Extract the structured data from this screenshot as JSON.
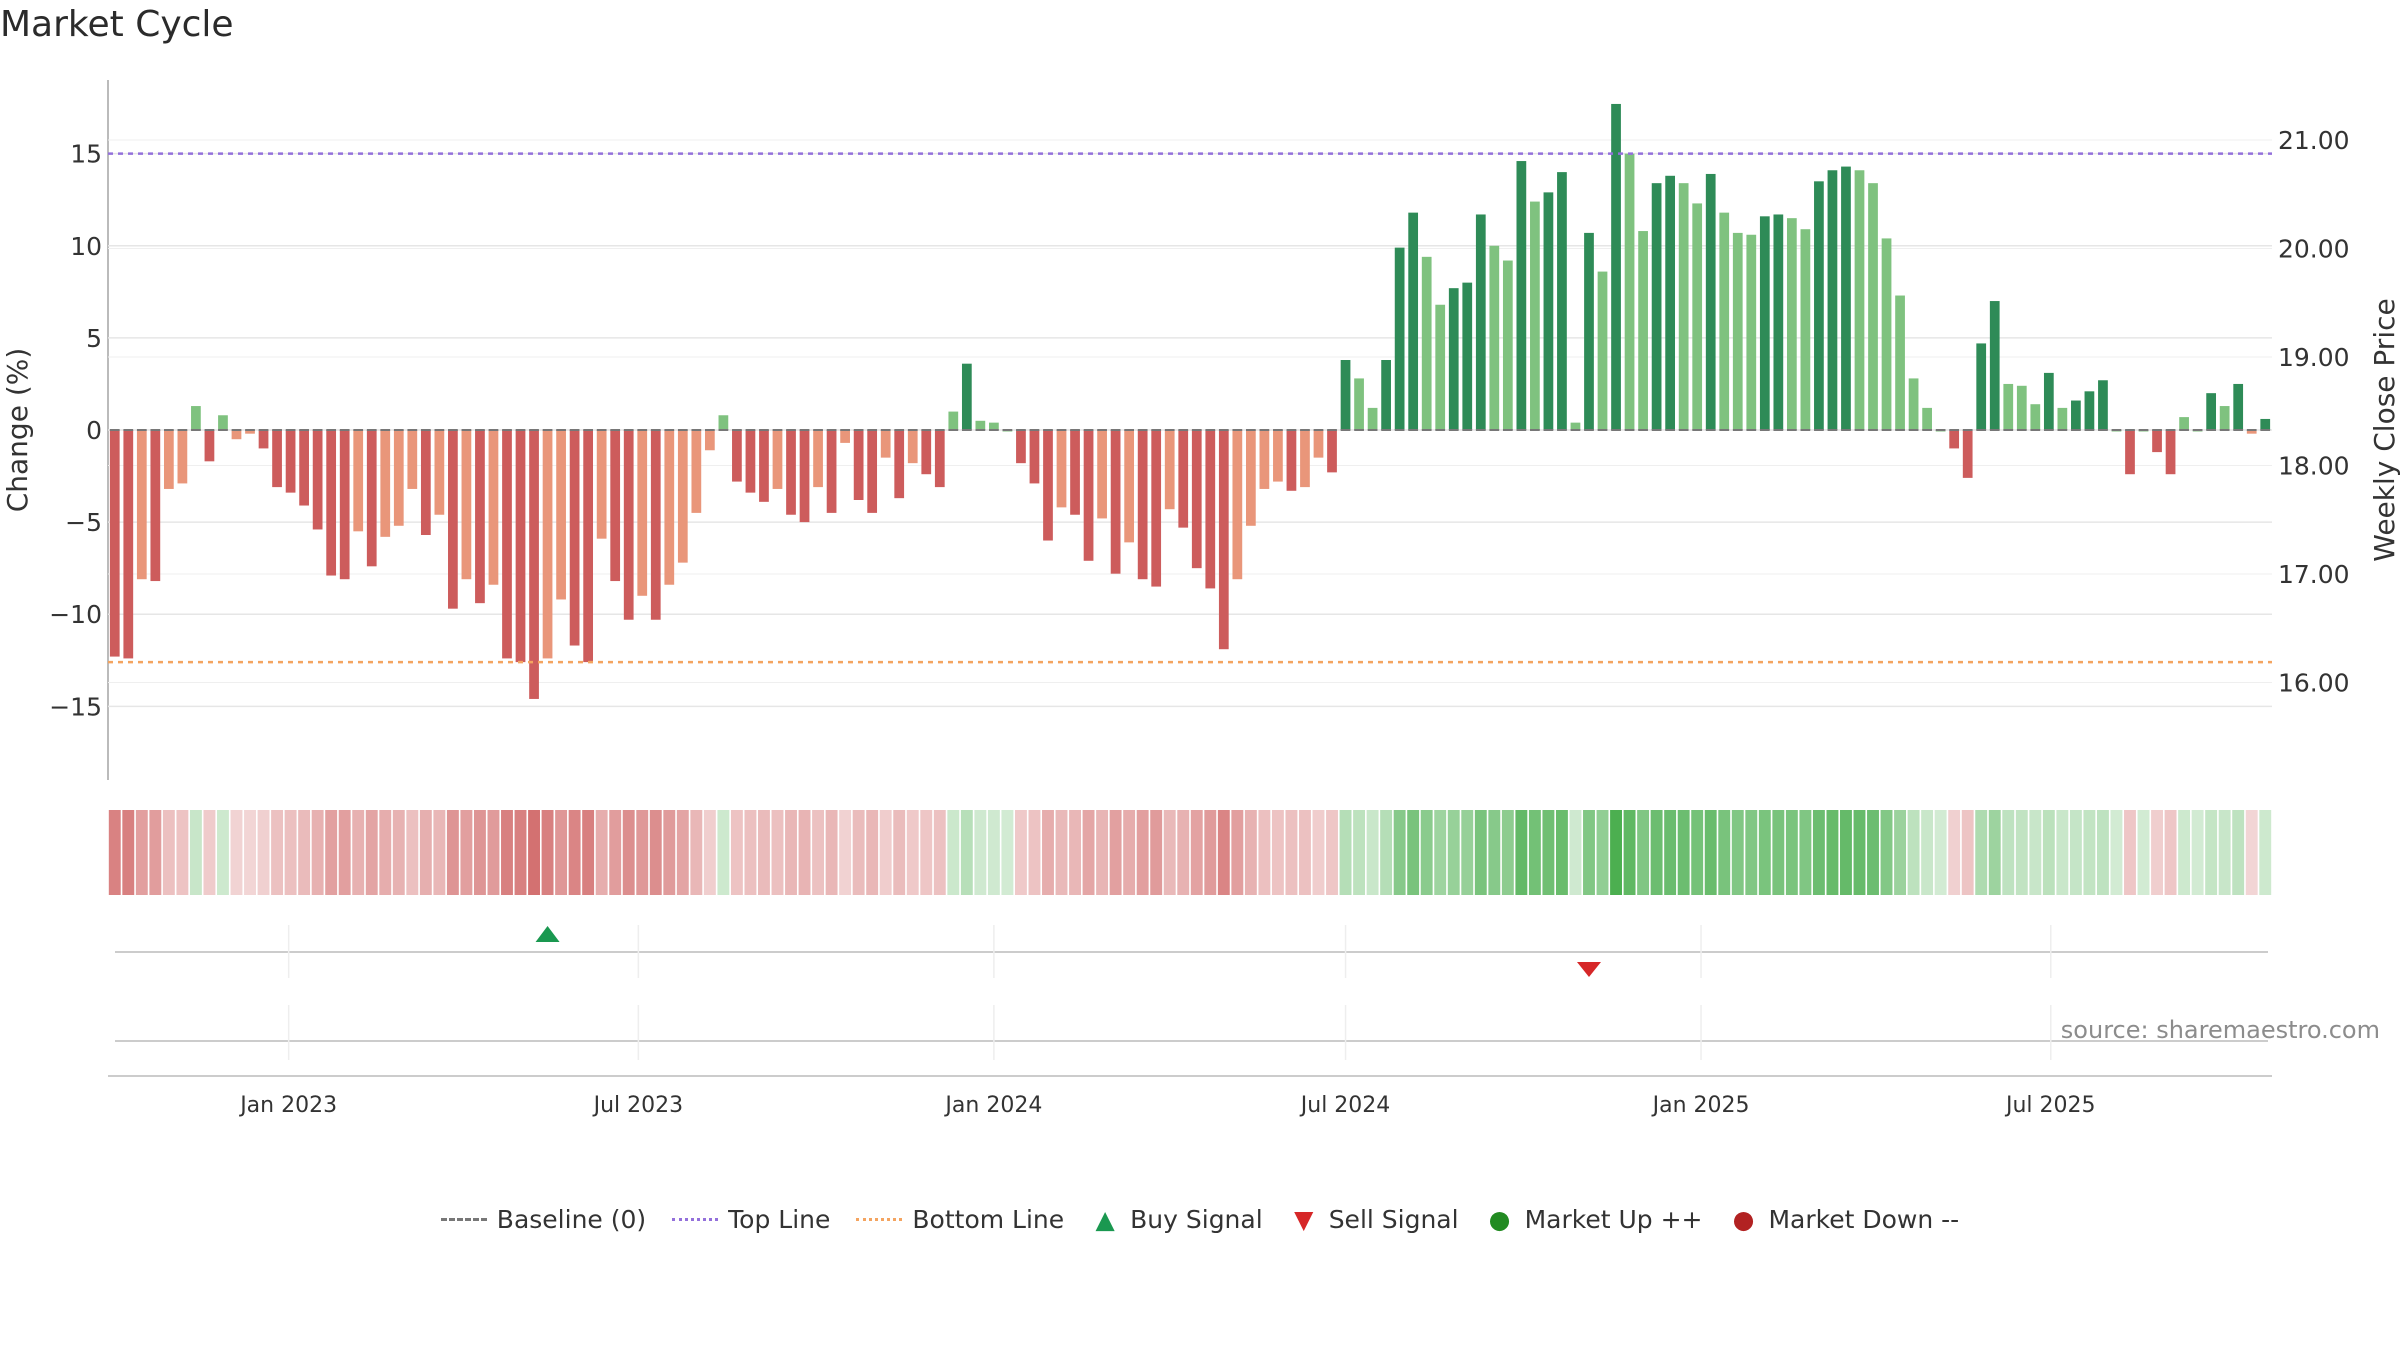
{
  "chart_data": {
    "type": "bar",
    "title": "Market Cycle",
    "ylabel": "Change (%)",
    "y2label": "Weekly Close Price",
    "ylim": [
      -19,
      19
    ],
    "yticks": [
      15,
      10,
      5,
      0,
      -5,
      -10,
      -15
    ],
    "y2ticks": [
      "21.00",
      "20.00",
      "19.00",
      "18.00",
      "17.00",
      "16.00"
    ],
    "top_line": 15,
    "bottom_line": -12.6,
    "x_labels": [
      "Jan 2023",
      "Jul 2023",
      "Jan 2024",
      "Jul 2024",
      "Jan 2025",
      "Jul 2025"
    ],
    "values": [
      -12.3,
      -12.4,
      -8.1,
      -8.2,
      -3.2,
      -2.9,
      1.3,
      -1.7,
      0.8,
      -0.5,
      -0.2,
      -1,
      -3.1,
      -3.4,
      -4.1,
      -5.4,
      -7.9,
      -8.1,
      -5.5,
      -7.4,
      -5.8,
      -5.2,
      -3.2,
      -5.7,
      -4.6,
      -9.7,
      -8.1,
      -9.4,
      -8.4,
      -12.4,
      -12.6,
      -14.6,
      -12.4,
      -9.2,
      -11.7,
      -12.6,
      -5.9,
      -8.2,
      -10.3,
      -9,
      -10.3,
      -8.4,
      -7.2,
      -4.5,
      -1.1,
      0.8,
      -2.8,
      -3.4,
      -3.9,
      -3.2,
      -4.6,
      -5,
      -3.1,
      -4.5,
      -0.7,
      -3.8,
      -4.5,
      -1.5,
      -3.7,
      -1.8,
      -2.4,
      -3.1,
      1,
      3.6,
      0.5,
      0.4,
      0,
      -1.8,
      -2.9,
      -6,
      -4.2,
      -4.6,
      -7.1,
      -4.8,
      -7.8,
      -6.1,
      -8.1,
      -8.5,
      -4.3,
      -5.3,
      -7.5,
      -8.6,
      -11.9,
      -8.1,
      -5.2,
      -3.2,
      -2.8,
      -3.3,
      -3.1,
      -1.5,
      -2.3,
      3.8,
      2.8,
      1.2,
      3.8,
      9.9,
      11.8,
      9.4,
      6.8,
      7.7,
      8,
      11.7,
      10,
      9.2,
      14.6,
      12.4,
      12.9,
      14,
      0.4,
      10.7,
      8.6,
      17.7,
      15,
      10.8,
      13.4,
      13.8,
      13.4,
      12.3,
      13.9,
      11.8,
      10.7,
      10.6,
      11.6,
      11.7,
      11.5,
      10.9,
      13.5,
      14.1,
      14.3,
      14.1,
      13.4,
      10.4,
      7.3,
      2.8,
      1.2,
      0,
      -1,
      -2.6,
      4.7,
      7,
      2.5,
      2.4,
      1.4,
      3.1,
      1.2,
      1.6,
      2.1,
      2.7,
      0,
      -2.4,
      0,
      -1.2,
      -2.4,
      0.7,
      0,
      2,
      1.3,
      2.5,
      -0.2,
      0.6
    ],
    "color_scheme": {
      "up_strong": "#2e8b57",
      "up_light": "#7fc27f",
      "down_strong": "#cd5c5c",
      "down_light": "#e9967a",
      "top_line": "#9370db",
      "bottom_line": "#f4a460",
      "baseline": "#777777"
    },
    "signals": [
      {
        "type": "buy",
        "date": "2023-05-15",
        "color": "#1a9850"
      },
      {
        "type": "sell",
        "date": "2024-11-04",
        "color": "#d62728"
      }
    ]
  },
  "legend": {
    "baseline": "Baseline (0)",
    "top_line": "Top Line",
    "bottom_line": "Bottom Line",
    "buy": "Buy Signal",
    "sell": "Sell Signal",
    "market_up": "Market Up ++",
    "market_down": "Market Down --",
    "colors": {
      "top": "#9370db",
      "bottom": "#f4a460",
      "buy": "#1a9850",
      "sell": "#d62728",
      "up": "#228b22",
      "down": "#b22222",
      "baseline": "#777777"
    }
  },
  "source": "source: sharemaestro.com"
}
